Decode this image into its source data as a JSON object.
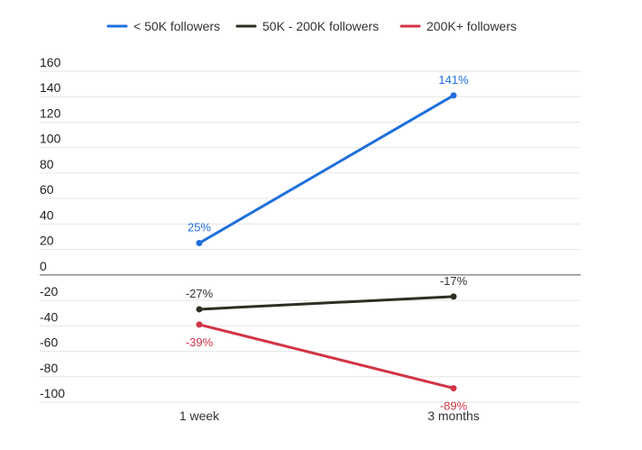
{
  "chart_data": {
    "type": "line",
    "title": "",
    "xlabel": "",
    "ylabel": "",
    "categories": [
      "1 week",
      "3 months"
    ],
    "ylim": [
      -100,
      160
    ],
    "yticks": [
      160,
      140,
      120,
      100,
      80,
      60,
      40,
      20,
      0,
      -20,
      -40,
      -60,
      -80,
      -100
    ],
    "grid": true,
    "legend_position": "top",
    "series": [
      {
        "name": "< 50K followers",
        "color": "#1f6fdc",
        "values": [
          25,
          141
        ],
        "labels": [
          "25%",
          "141%"
        ]
      },
      {
        "name": "50K - 200K followers",
        "color": "#2e2e22",
        "values": [
          -27,
          -17
        ],
        "labels": [
          "-27%",
          "-17%"
        ]
      },
      {
        "name": "200K+ followers",
        "color": "#d23447",
        "values": [
          -39,
          -89
        ],
        "labels": [
          "-39%",
          "-89%"
        ]
      }
    ]
  }
}
